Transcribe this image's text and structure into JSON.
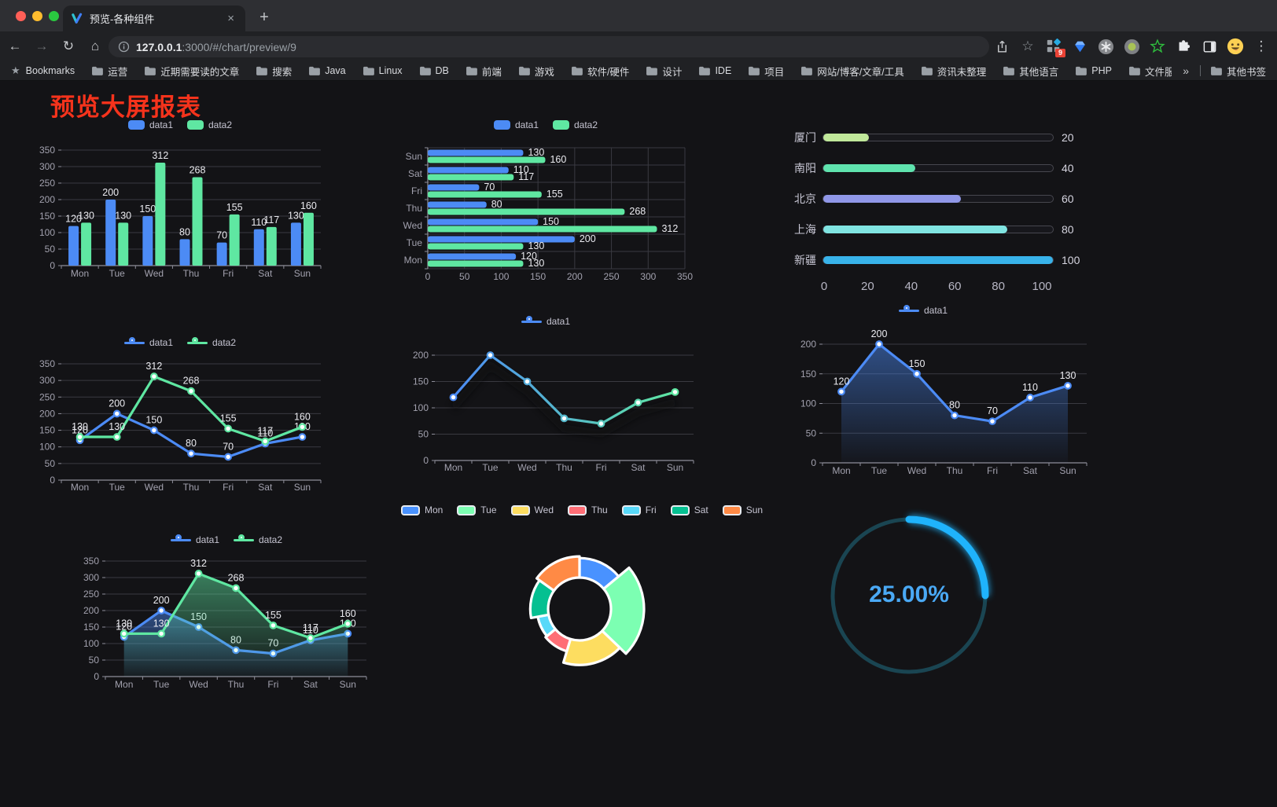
{
  "browser": {
    "tab_title": "预览-各种组件",
    "url_host": "127.0.0.1",
    "url_rest": ":3000/#/chart/preview/9",
    "extension_badge": "9",
    "bookmarks_label": "Bookmarks",
    "bookmarks": [
      "运营",
      "近期需要读的文章",
      "搜索",
      "Java",
      "Linux",
      "DB",
      "前端",
      "游戏",
      "软件/硬件",
      "设计",
      "IDE",
      "项目",
      "网站/博客/文章/工具",
      "资讯未整理",
      "其他语言",
      "PHP",
      "文件服务器"
    ],
    "bookmarks_overflow": "»",
    "other_bookmarks": "其他书签",
    "icons": {
      "back": "←",
      "forward": "→",
      "reload": "↻",
      "home": "⌂",
      "close": "×",
      "new_tab": "+",
      "menu": "⋮",
      "bookmark_star": "☆",
      "bookmarks_bar_star": "★"
    }
  },
  "page": {
    "title": "预览大屏报表",
    "title_color": "#f5331c",
    "background": "#131316"
  },
  "chart_data": [
    {
      "id": "bar-grouped",
      "type": "bar",
      "categories": [
        "Mon",
        "Tue",
        "Wed",
        "Thu",
        "Fri",
        "Sat",
        "Sun"
      ],
      "series": [
        {
          "name": "data1",
          "color": "#4c8bf5",
          "values": [
            120,
            200,
            150,
            80,
            70,
            110,
            130
          ]
        },
        {
          "name": "data2",
          "color": "#5fe7a2",
          "values": [
            130,
            130,
            312,
            268,
            155,
            117,
            160
          ]
        }
      ],
      "ylim": [
        0,
        350
      ],
      "yticks": [
        0,
        50,
        100,
        150,
        200,
        250,
        300,
        350
      ],
      "labels": true,
      "legend_position": "top",
      "grid": true
    },
    {
      "id": "bar-horizontal",
      "type": "hbar",
      "categories": [
        "Mon",
        "Tue",
        "Wed",
        "Thu",
        "Fri",
        "Sat",
        "Sun"
      ],
      "series": [
        {
          "name": "data1",
          "color": "#4c8bf5",
          "values": [
            120,
            200,
            150,
            80,
            70,
            110,
            130
          ]
        },
        {
          "name": "data2",
          "color": "#5fe7a2",
          "values": [
            130,
            130,
            312,
            268,
            155,
            117,
            160
          ]
        }
      ],
      "xlim": [
        0,
        350
      ],
      "xticks": [
        0,
        50,
        100,
        150,
        200,
        250,
        300,
        350
      ],
      "labels": true,
      "legend_position": "top",
      "grid": true
    },
    {
      "id": "progress-list",
      "type": "progress",
      "max": 100,
      "items": [
        {
          "label": "厦门",
          "value": 20,
          "color": "#c0e89a"
        },
        {
          "label": "南阳",
          "value": 40,
          "color": "#5fe3ae"
        },
        {
          "label": "北京",
          "value": 60,
          "color": "#9097e8"
        },
        {
          "label": "上海",
          "value": 80,
          "color": "#80e4e1"
        },
        {
          "label": "新疆",
          "value": 100,
          "color": "#38b3ea"
        }
      ],
      "xticks": [
        0,
        20,
        40,
        60,
        80,
        100
      ]
    },
    {
      "id": "line-two-series",
      "type": "line",
      "categories": [
        "Mon",
        "Tue",
        "Wed",
        "Thu",
        "Fri",
        "Sat",
        "Sun"
      ],
      "series": [
        {
          "name": "data1",
          "color": "#4c8bf5",
          "values": [
            120,
            200,
            150,
            80,
            70,
            110,
            130
          ]
        },
        {
          "name": "data2",
          "color": "#5fe7a2",
          "values": [
            130,
            130,
            312,
            268,
            155,
            117,
            160
          ]
        }
      ],
      "ylim": [
        0,
        350
      ],
      "yticks": [
        0,
        50,
        100,
        150,
        200,
        250,
        300,
        350
      ],
      "labels": true,
      "legend_position": "top",
      "grid": true
    },
    {
      "id": "line-gradient",
      "type": "line",
      "categories": [
        "Mon",
        "Tue",
        "Wed",
        "Thu",
        "Fri",
        "Sat",
        "Sun"
      ],
      "series": [
        {
          "name": "data1",
          "color_start": "#4c8bf5",
          "color_end": "#5fe7a2",
          "values": [
            120,
            200,
            150,
            80,
            70,
            110,
            130
          ]
        }
      ],
      "ylim": [
        0,
        200
      ],
      "yticks": [
        0,
        50,
        100,
        150,
        200
      ],
      "labels": false,
      "shadow": true,
      "legend_position": "top",
      "grid": true
    },
    {
      "id": "line-area",
      "type": "line",
      "categories": [
        "Mon",
        "Tue",
        "Wed",
        "Thu",
        "Fri",
        "Sat",
        "Sun"
      ],
      "series": [
        {
          "name": "data1",
          "color": "#4c8bf5",
          "area": true,
          "values": [
            120,
            200,
            150,
            80,
            70,
            110,
            130
          ]
        }
      ],
      "ylim": [
        0,
        200
      ],
      "yticks": [
        0,
        50,
        100,
        150,
        200
      ],
      "labels": true,
      "legend_position": "top",
      "grid": true
    },
    {
      "id": "line-area-two",
      "type": "line",
      "categories": [
        "Mon",
        "Tue",
        "Wed",
        "Thu",
        "Fri",
        "Sat",
        "Sun"
      ],
      "series": [
        {
          "name": "data1",
          "color": "#4c8bf5",
          "area": true,
          "values": [
            120,
            200,
            150,
            80,
            70,
            110,
            130
          ]
        },
        {
          "name": "data2",
          "color": "#5fe7a2",
          "area": true,
          "values": [
            130,
            130,
            312,
            268,
            155,
            117,
            160
          ]
        }
      ],
      "ylim": [
        0,
        350
      ],
      "yticks": [
        0,
        50,
        100,
        150,
        200,
        250,
        300,
        350
      ],
      "labels": true,
      "legend_position": "top",
      "grid": true
    },
    {
      "id": "pie-rose",
      "type": "pie",
      "categories": [
        "Mon",
        "Tue",
        "Wed",
        "Thu",
        "Fri",
        "Sat",
        "Sun"
      ],
      "values": [
        120,
        200,
        150,
        80,
        70,
        110,
        130
      ],
      "colors": [
        "#4992ff",
        "#7cffb2",
        "#fddd60",
        "#ff6e76",
        "#58d9f9",
        "#05c091",
        "#ff8a45"
      ],
      "legend_position": "top"
    },
    {
      "id": "gauge",
      "type": "gauge",
      "value": 25,
      "max": 100,
      "label": "25.00%",
      "progress_color": "#1fb3fc",
      "track_color": "#1a4552",
      "label_color": "#4aa9f5"
    }
  ]
}
